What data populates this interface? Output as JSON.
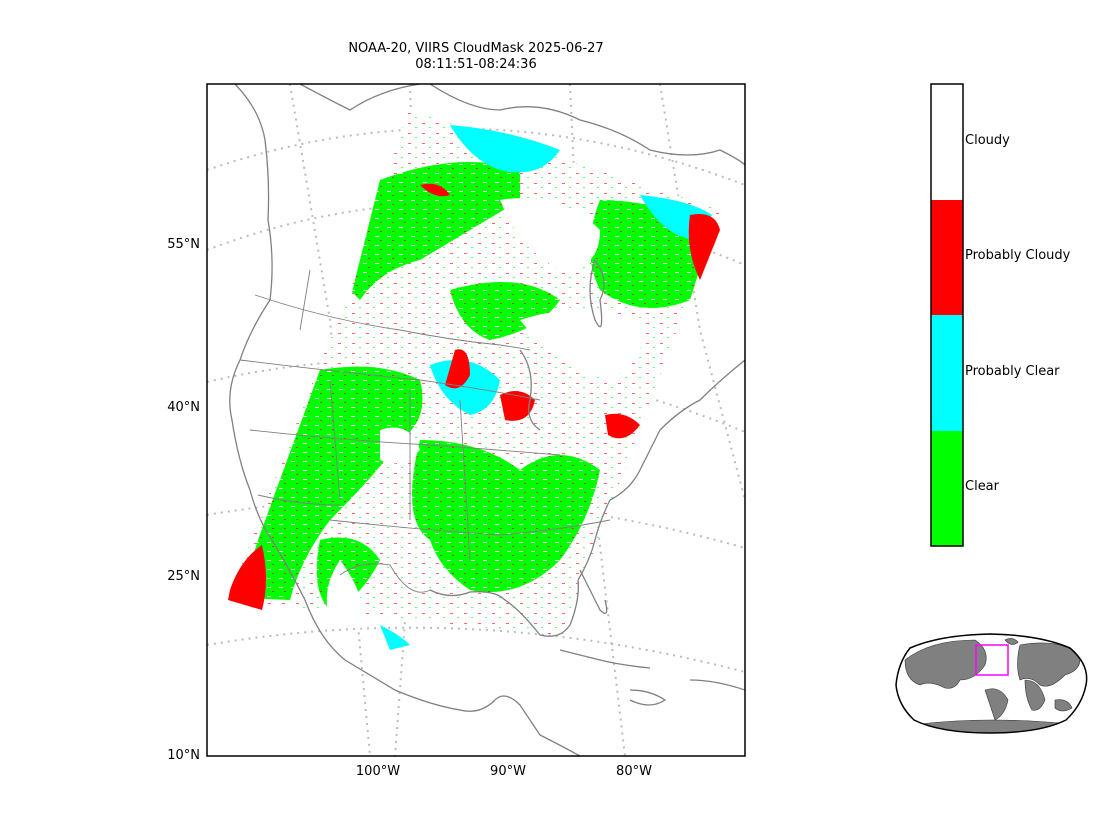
{
  "title": {
    "line1": "NOAA-20, VIIRS CloudMask 2025-06-27",
    "line2": "08:11:51-08:24:36"
  },
  "map": {
    "lat_labels": [
      "55°N",
      "40°N",
      "25°N",
      "10°N"
    ],
    "lon_labels": [
      "100°W",
      "90°W",
      "80°W"
    ],
    "coastline_color": "#808080",
    "graticule_color": "#bbbbbb"
  },
  "legend": {
    "classes": [
      {
        "label": "Cloudy",
        "color": "#ffffff"
      },
      {
        "label": "Probably Cloudy",
        "color": "#ff0000"
      },
      {
        "label": "Probably Clear",
        "color": "#00ffff"
      },
      {
        "label": "Clear",
        "color": "#00ff00"
      }
    ]
  },
  "inset": {
    "land_color": "#808080",
    "box_color": "#ff00ff"
  }
}
